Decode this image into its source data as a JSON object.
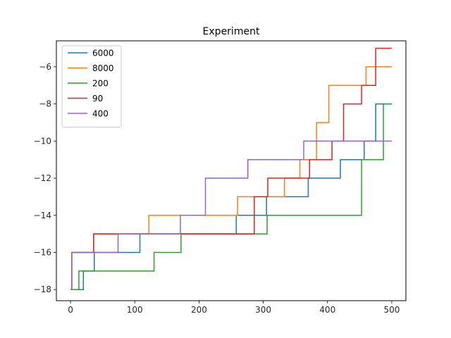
{
  "chart_data": {
    "type": "line",
    "title": "Experiment",
    "xlabel": "",
    "ylabel": "",
    "xlim": [
      -22,
      522
    ],
    "ylim": [
      -18.6,
      -4.6
    ],
    "xticks": [
      0,
      100,
      200,
      300,
      400,
      500
    ],
    "xtick_labels": [
      "0",
      "100",
      "200",
      "300",
      "400",
      "500"
    ],
    "yticks": [
      -18,
      -16,
      -14,
      -12,
      -10,
      -8,
      -6
    ],
    "ytick_labels": [
      "−18",
      "−16",
      "−14",
      "−12",
      "−10",
      "−8",
      "−6"
    ],
    "grid": false,
    "legend_position": "top-left",
    "series": [
      {
        "name": "6000",
        "color": "#1f77b4",
        "x": [
          0,
          2,
          20,
          37,
          108,
          258,
          305,
          370,
          420,
          457,
          475,
          500
        ],
        "y": [
          -18,
          -18,
          -17,
          -16,
          -15,
          -14,
          -13,
          -12,
          -11,
          -10,
          -8,
          -8
        ]
      },
      {
        "name": "8000",
        "color": "#ff7f0e",
        "x": [
          0,
          2,
          36,
          122,
          260,
          333,
          357,
          383,
          402,
          454,
          460,
          500
        ],
        "y": [
          -18,
          -16,
          -15,
          -14,
          -13,
          -12,
          -11,
          -9,
          -7,
          -7,
          -6,
          -6
        ]
      },
      {
        "name": "200",
        "color": "#2ca02c",
        "x": [
          0,
          2,
          6,
          13,
          130,
          172,
          306,
          453,
          487,
          500
        ],
        "y": [
          -18,
          -18,
          -18,
          -17,
          -16,
          -15,
          -14,
          -11,
          -8,
          -8
        ]
      },
      {
        "name": "90",
        "color": "#d62728",
        "x": [
          0,
          2,
          36,
          286,
          307,
          372,
          407,
          425,
          453,
          475,
          500
        ],
        "y": [
          -18,
          -16,
          -15,
          -13,
          -12,
          -11,
          -10,
          -8,
          -7,
          -5,
          -5
        ]
      },
      {
        "name": "400",
        "color": "#9467bd",
        "x": [
          0,
          2,
          74,
          171,
          210,
          276,
          363,
          500
        ],
        "y": [
          -18,
          -16,
          -15,
          -14,
          -12,
          -11,
          -10,
          -10
        ]
      }
    ]
  }
}
